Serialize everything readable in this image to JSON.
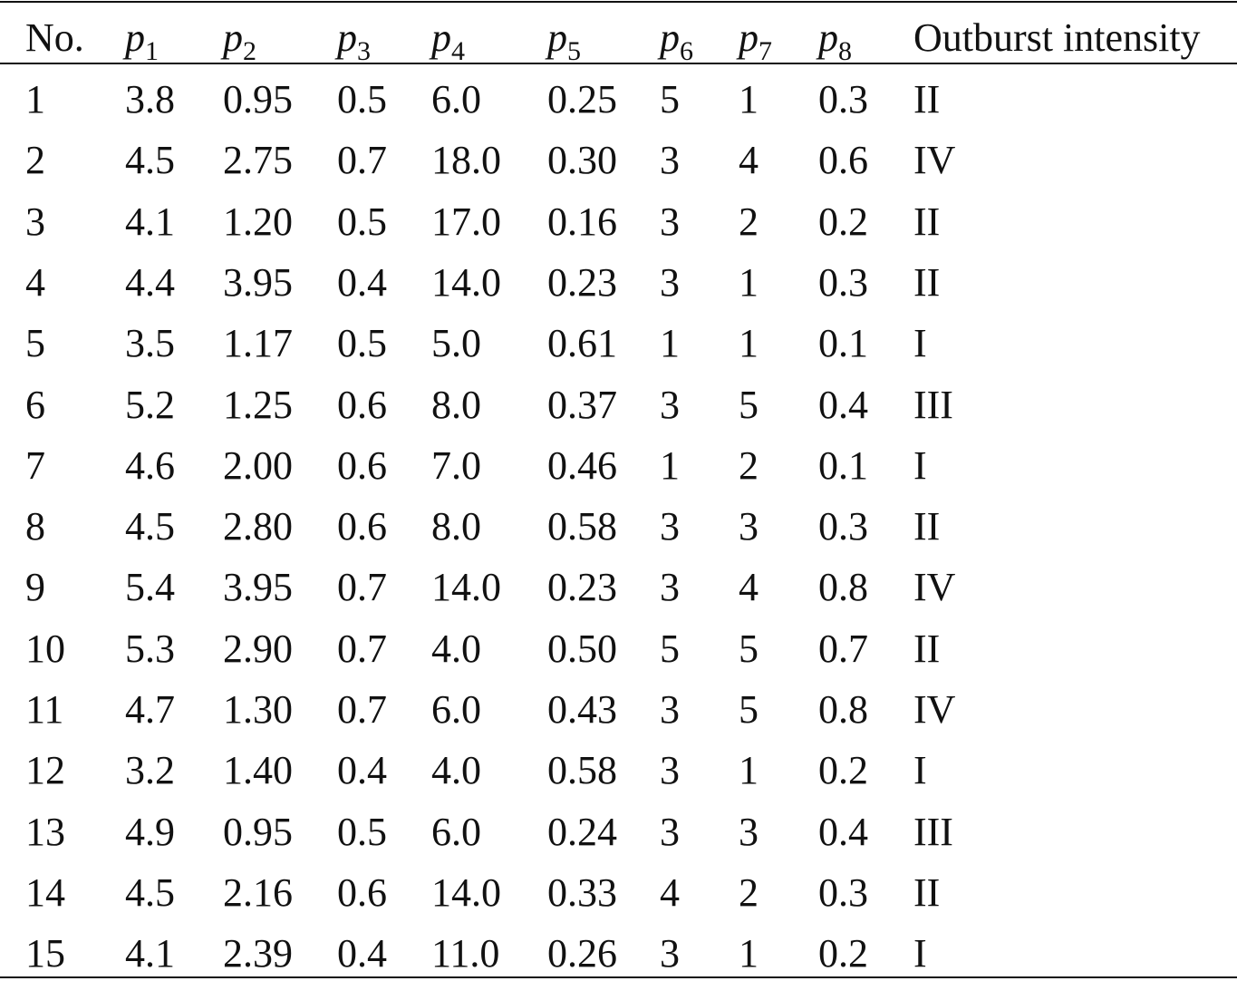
{
  "table": {
    "headers": [
      {
        "text": "No."
      },
      {
        "text": "p",
        "sub": "1"
      },
      {
        "text": "p",
        "sub": "2"
      },
      {
        "text": "p",
        "sub": "3"
      },
      {
        "text": "p",
        "sub": "4"
      },
      {
        "text": "p",
        "sub": "5"
      },
      {
        "text": "p",
        "sub": "6"
      },
      {
        "text": "p",
        "sub": "7"
      },
      {
        "text": "p",
        "sub": "8"
      },
      {
        "text": "Outburst intensity"
      }
    ],
    "rows": [
      [
        "1",
        "3.8",
        "0.95",
        "0.5",
        "6.0",
        "0.25",
        "5",
        "1",
        "0.3",
        "II"
      ],
      [
        "2",
        "4.5",
        "2.75",
        "0.7",
        "18.0",
        "0.30",
        "3",
        "4",
        "0.6",
        "IV"
      ],
      [
        "3",
        "4.1",
        "1.20",
        "0.5",
        "17.0",
        "0.16",
        "3",
        "2",
        "0.2",
        "II"
      ],
      [
        "4",
        "4.4",
        "3.95",
        "0.4",
        "14.0",
        "0.23",
        "3",
        "1",
        "0.3",
        "II"
      ],
      [
        "5",
        "3.5",
        "1.17",
        "0.5",
        "5.0",
        "0.61",
        "1",
        "1",
        "0.1",
        "I"
      ],
      [
        "6",
        "5.2",
        "1.25",
        "0.6",
        "8.0",
        "0.37",
        "3",
        "5",
        "0.4",
        "III"
      ],
      [
        "7",
        "4.6",
        "2.00",
        "0.6",
        "7.0",
        "0.46",
        "1",
        "2",
        "0.1",
        "I"
      ],
      [
        "8",
        "4.5",
        "2.80",
        "0.6",
        "8.0",
        "0.58",
        "3",
        "3",
        "0.3",
        "II"
      ],
      [
        "9",
        "5.4",
        "3.95",
        "0.7",
        "14.0",
        "0.23",
        "3",
        "4",
        "0.8",
        "IV"
      ],
      [
        "10",
        "5.3",
        "2.90",
        "0.7",
        "4.0",
        "0.50",
        "5",
        "5",
        "0.7",
        "II"
      ],
      [
        "11",
        "4.7",
        "1.30",
        "0.7",
        "6.0",
        "0.43",
        "3",
        "5",
        "0.8",
        "IV"
      ],
      [
        "12",
        "3.2",
        "1.40",
        "0.4",
        "4.0",
        "0.58",
        "3",
        "1",
        "0.2",
        "I"
      ],
      [
        "13",
        "4.9",
        "0.95",
        "0.5",
        "6.0",
        "0.24",
        "3",
        "3",
        "0.4",
        "III"
      ],
      [
        "14",
        "4.5",
        "2.16",
        "0.6",
        "14.0",
        "0.33",
        "4",
        "2",
        "0.3",
        "II"
      ],
      [
        "15",
        "4.1",
        "2.39",
        "0.4",
        "11.0",
        "0.26",
        "3",
        "1",
        "0.2",
        "I"
      ]
    ]
  }
}
